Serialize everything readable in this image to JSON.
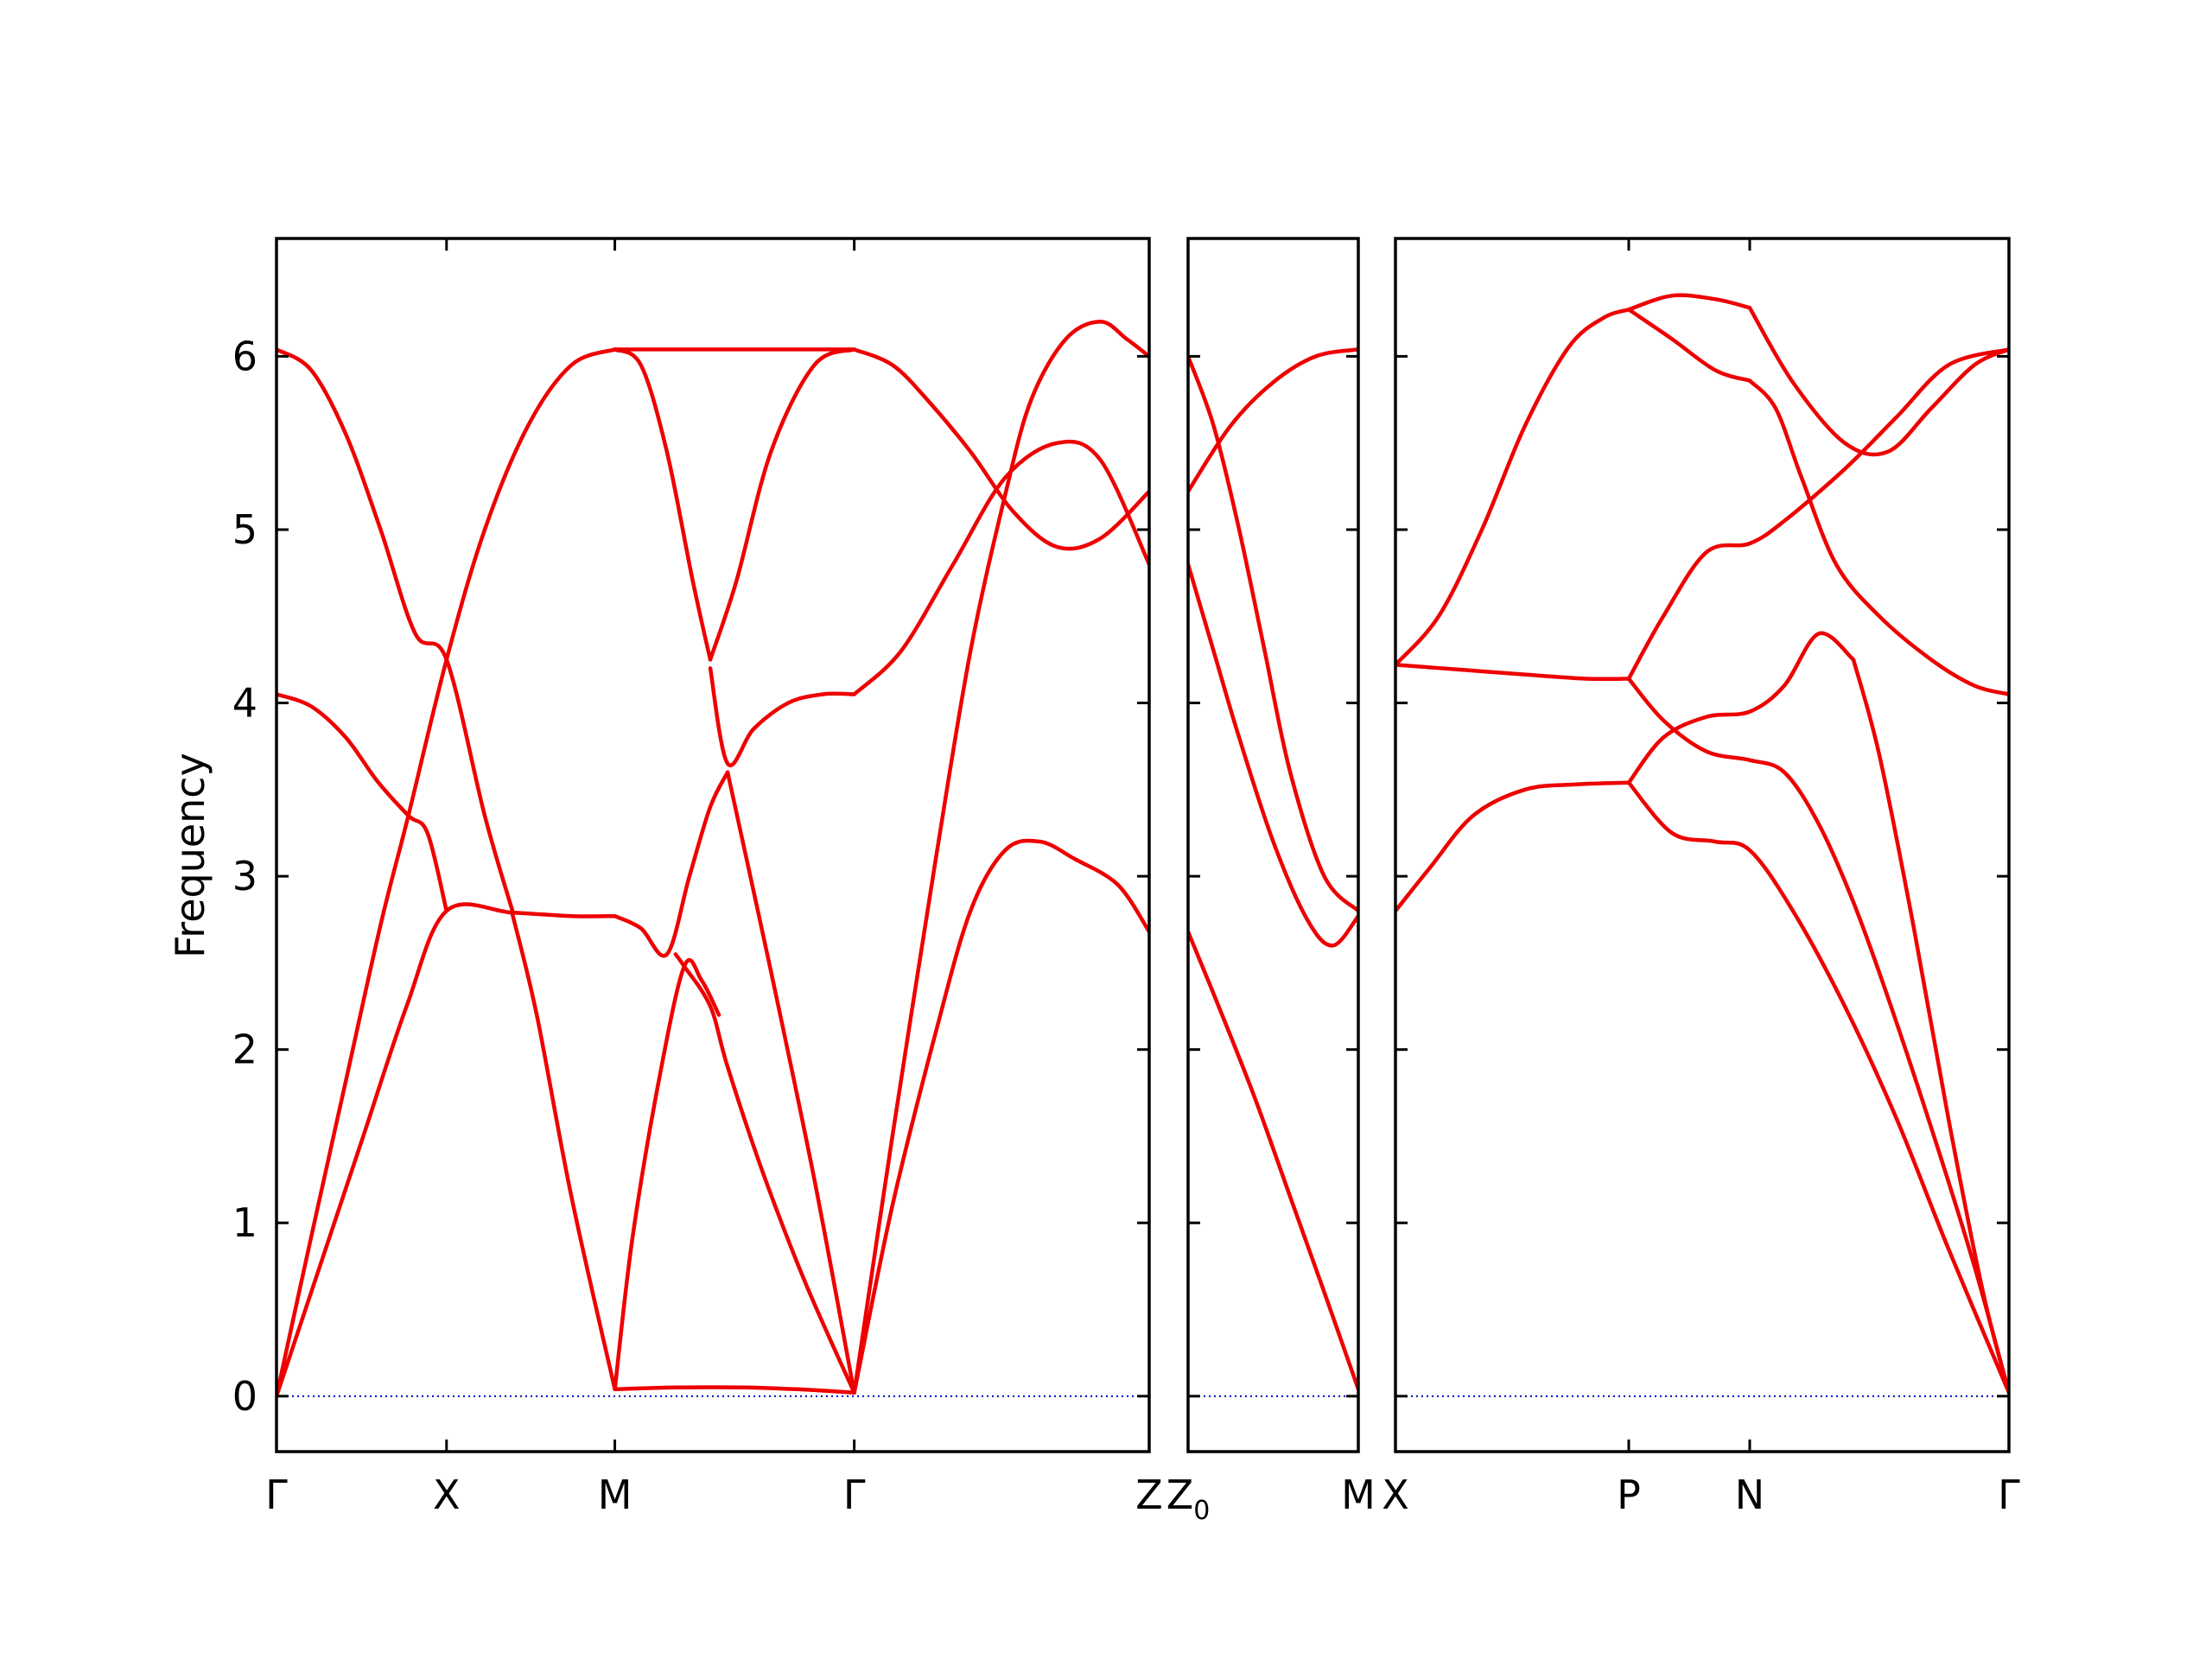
{
  "chart_data": {
    "type": "line",
    "title": "",
    "ylabel": "Frequency",
    "ylim": [
      -0.32,
      6.68
    ],
    "yticks": [
      0,
      1,
      2,
      3,
      4,
      5,
      6
    ],
    "grid": false,
    "legend": "none",
    "colors": {
      "band": "#ee0000",
      "zero_line": "#0000cc",
      "axes": "#000000"
    },
    "panels": [
      {
        "id": "panel-1",
        "xlim": [
          0,
          5.03
        ],
        "ticks": [
          {
            "x": 0,
            "label": "Γ"
          },
          {
            "x": 0.98,
            "label": "X"
          },
          {
            "x": 1.95,
            "label": "M"
          },
          {
            "x": 3.33,
            "label": "Γ"
          },
          {
            "x": 5.03,
            "label": "Z"
          }
        ],
        "bands": [
          {
            "x": [
              0,
              0.2,
              0.4,
              0.6,
              0.76,
              0.98,
              1.2,
              1.45,
              1.7,
              1.95
            ],
            "y": [
              0,
              0.92,
              1.82,
              2.72,
              3.35,
              4.25,
              5.0,
              5.6,
              5.95,
              6.04
            ]
          },
          {
            "x": [
              0,
              0.25,
              0.5,
              0.75,
              0.98,
              1.36,
              1.7,
              1.95
            ],
            "y": [
              0,
              0.75,
              1.5,
              2.25,
              2.8,
              2.79,
              2.77,
              2.77
            ]
          },
          {
            "x": [
              0,
              0.2,
              0.4,
              0.6,
              0.8,
              0.98,
              1.2,
              1.36
            ],
            "y": [
              6.04,
              5.92,
              5.55,
              5.0,
              4.4,
              4.25,
              3.35,
              2.8
            ]
          },
          {
            "x": [
              0,
              0.2,
              0.4,
              0.58,
              0.76,
              0.87,
              0.98
            ],
            "y": [
              4.05,
              3.98,
              3.8,
              3.55,
              3.35,
              3.25,
              2.8
            ]
          },
          {
            "x": [
              1.36,
              1.5,
              1.7,
              1.95
            ],
            "y": [
              2.78,
              2.2,
              1.15,
              0.04
            ]
          },
          {
            "x": [
              1.95,
              2.2,
              2.45,
              2.65,
              3.0,
              3.33
            ],
            "y": [
              6.04,
              6.04,
              6.04,
              6.04,
              6.04,
              6.04
            ]
          },
          {
            "x": [
              1.95,
              2.1,
              2.25,
              2.4,
              2.5
            ],
            "y": [
              6.04,
              5.95,
              5.45,
              4.7,
              4.25
            ]
          },
          {
            "x": [
              2.5,
              2.65,
              2.85,
              3.1,
              3.33
            ],
            "y": [
              4.25,
              4.7,
              5.45,
              5.95,
              6.04
            ]
          },
          {
            "x": [
              1.95,
              2.1,
              2.25,
              2.38,
              2.5,
              2.6
            ],
            "y": [
              2.77,
              2.7,
              2.55,
              3.0,
              3.4,
              3.6
            ]
          },
          {
            "x": [
              2.6,
              2.85,
              3.1,
              3.33
            ],
            "y": [
              3.6,
              2.45,
              1.25,
              0.02
            ]
          },
          {
            "x": [
              2.3,
              2.35,
              2.5,
              2.6,
              2.8,
              3.05,
              3.33
            ],
            "y": [
              2.55,
              2.48,
              2.25,
              1.9,
              1.3,
              0.65,
              0.02
            ]
          },
          {
            "x": [
              1.95,
              2.3,
              2.7,
              3.0,
              3.33
            ],
            "y": [
              0.04,
              0.05,
              0.05,
              0.04,
              0.02
            ]
          },
          {
            "x": [
              1.95,
              2.05,
              2.2,
              2.35,
              2.45,
              2.55
            ],
            "y": [
              0.04,
              0.9,
              1.8,
              2.48,
              2.4,
              2.2
            ]
          },
          {
            "x": [
              2.5,
              2.6,
              2.75,
              2.95,
              3.15,
              3.33
            ],
            "y": [
              4.2,
              3.65,
              3.85,
              4.0,
              4.05,
              4.05
            ]
          },
          {
            "x": [
              3.33,
              3.6,
              3.9,
              4.2,
              4.5,
              4.75,
              5.03
            ],
            "y": [
              4.05,
              4.3,
              4.8,
              5.3,
              5.5,
              5.4,
              4.8
            ]
          },
          {
            "x": [
              3.33,
              3.55,
              3.75,
              4.0,
              4.25,
              4.5,
              4.75,
              5.03
            ],
            "y": [
              6.04,
              5.95,
              5.75,
              5.45,
              5.1,
              4.9,
              4.95,
              5.22
            ]
          },
          {
            "x": [
              3.33,
              3.55,
              3.8,
              4.0,
              4.2,
              4.4,
              4.6,
              4.85,
              5.03
            ],
            "y": [
              0.02,
              1.1,
              2.1,
              2.8,
              3.15,
              3.2,
              3.1,
              2.95,
              2.68
            ]
          },
          {
            "x": [
              3.33,
              3.55,
              3.8,
              4.0,
              4.2,
              4.35,
              4.55,
              4.75,
              4.9,
              5.03
            ],
            "y": [
              0.02,
              1.5,
              3.1,
              4.3,
              5.2,
              5.75,
              6.1,
              6.2,
              6.1,
              6.0
            ]
          }
        ]
      },
      {
        "id": "panel-2",
        "xlim": [
          0,
          1
        ],
        "ticks": [
          {
            "x": 0,
            "label": "Z",
            "sub": "0"
          },
          {
            "x": 1,
            "label": "M"
          }
        ],
        "bands": [
          {
            "x": [
              0,
              0.25,
              0.5,
              0.75,
              1.0
            ],
            "y": [
              5.22,
              5.6,
              5.85,
              6.0,
              6.04
            ]
          },
          {
            "x": [
              0,
              0.15,
              0.3,
              0.45,
              0.6,
              0.8,
              1.0
            ],
            "y": [
              6.0,
              5.6,
              5.0,
              4.3,
              3.6,
              3.0,
              2.8
            ]
          },
          {
            "x": [
              0,
              0.15,
              0.3,
              0.5,
              0.7,
              0.85,
              1.0
            ],
            "y": [
              4.8,
              4.3,
              3.8,
              3.2,
              2.75,
              2.6,
              2.77
            ]
          },
          {
            "x": [
              0,
              0.2,
              0.4,
              0.6,
              0.8,
              1.0
            ],
            "y": [
              2.68,
              2.2,
              1.7,
              1.15,
              0.6,
              0.04
            ]
          }
        ]
      },
      {
        "id": "panel-3",
        "xlim": [
          0,
          3.55
        ],
        "ticks": [
          {
            "x": 0,
            "label": "X"
          },
          {
            "x": 1.35,
            "label": "P"
          },
          {
            "x": 2.05,
            "label": "N"
          },
          {
            "x": 3.55,
            "label": "Γ"
          }
        ],
        "bands": [
          {
            "x": [
              0,
              0.25,
              0.5,
              0.75,
              1.0,
              1.2,
              1.35
            ],
            "y": [
              4.22,
              4.5,
              5.0,
              5.6,
              6.05,
              6.22,
              6.27
            ]
          },
          {
            "x": [
              1.35,
              1.6,
              1.85,
              2.05
            ],
            "y": [
              6.27,
              6.35,
              6.33,
              6.28
            ]
          },
          {
            "x": [
              1.35,
              1.6,
              1.85,
              2.05
            ],
            "y": [
              6.27,
              6.1,
              5.92,
              5.86
            ]
          },
          {
            "x": [
              2.05,
              2.3,
              2.6,
              2.85,
              3.1,
              3.35,
              3.55
            ],
            "y": [
              6.28,
              5.85,
              5.5,
              5.45,
              5.7,
              5.95,
              6.04
            ]
          },
          {
            "x": [
              2.05,
              2.2,
              2.35,
              2.55,
              2.8,
              3.1,
              3.35,
              3.55
            ],
            "y": [
              5.86,
              5.7,
              5.3,
              4.8,
              4.5,
              4.25,
              4.1,
              4.05
            ]
          },
          {
            "x": [
              0,
              0.4,
              0.8,
              1.1,
              1.35
            ],
            "y": [
              4.22,
              4.19,
              4.16,
              4.14,
              4.14
            ]
          },
          {
            "x": [
              1.35,
              1.55,
              1.8,
              2.05,
              2.25,
              2.6,
              2.9,
              3.2,
              3.55
            ],
            "y": [
              4.14,
              4.5,
              4.87,
              4.92,
              5.05,
              5.35,
              5.65,
              5.95,
              6.04
            ]
          },
          {
            "x": [
              0,
              0.2,
              0.45,
              0.75,
              1.05,
              1.35
            ],
            "y": [
              2.8,
              3.05,
              3.35,
              3.5,
              3.53,
              3.54
            ]
          },
          {
            "x": [
              1.35,
              1.55,
              1.8,
              2.05,
              2.25,
              2.45,
              2.65,
              2.85,
              3.1,
              3.35,
              3.55
            ],
            "y": [
              4.14,
              3.9,
              3.72,
              3.67,
              3.6,
              3.3,
              2.85,
              2.3,
              1.55,
              0.75,
              0.02
            ]
          },
          {
            "x": [
              1.35,
              1.55,
              1.8,
              2.05,
              2.25,
              2.45,
              2.65
            ],
            "y": [
              3.54,
              3.8,
              3.92,
              3.95,
              4.1,
              4.4,
              4.25
            ]
          },
          {
            "x": [
              2.65,
              2.8,
              3.0,
              3.2,
              3.4,
              3.55
            ],
            "y": [
              4.25,
              3.7,
              2.7,
              1.6,
              0.6,
              0.02
            ]
          },
          {
            "x": [
              1.35,
              1.6,
              1.85,
              2.05,
              2.3,
              2.6,
              2.9,
              3.2,
              3.55
            ],
            "y": [
              3.54,
              3.25,
              3.2,
              3.15,
              2.8,
              2.25,
              1.6,
              0.85,
              0.02
            ]
          }
        ]
      }
    ]
  }
}
